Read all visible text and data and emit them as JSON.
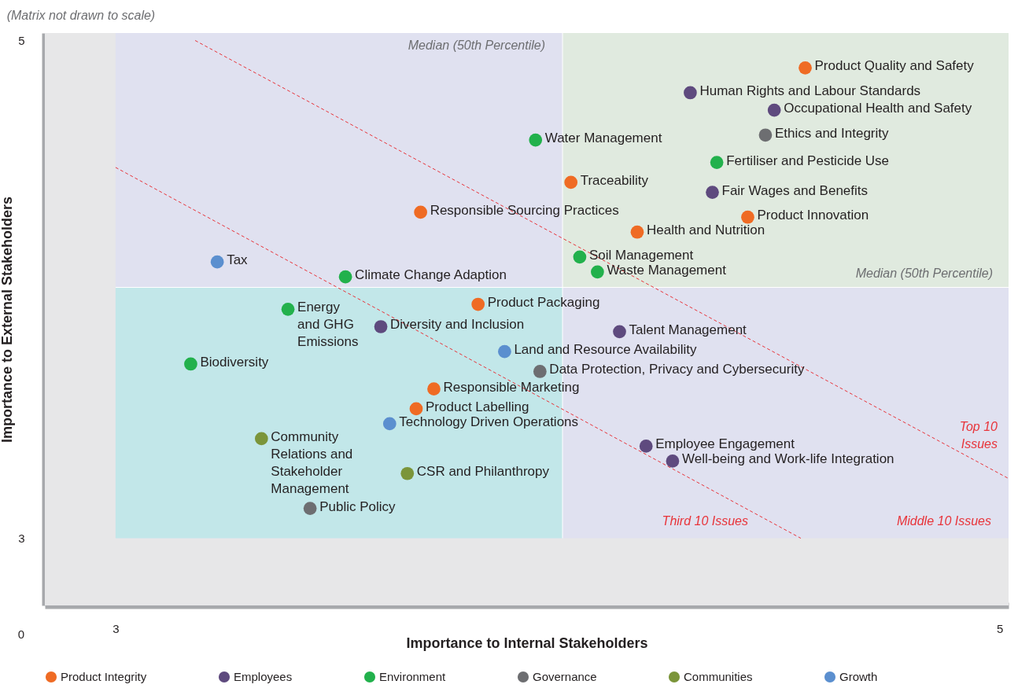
{
  "chart_data": {
    "type": "scatter",
    "xlabel": "Importance to Internal Stakeholders",
    "ylabel": "Importance to External Stakeholders",
    "xlim": [
      2.84,
      5.02
    ],
    "xticks": [
      3,
      5
    ],
    "ylim": [
      2.73,
      5.03
    ],
    "yticks": [
      3,
      5
    ],
    "legend": "bottom",
    "marker": "circle",
    "series": [
      {
        "name": "Product Integrity",
        "color": "#ef6b24",
        "x": [
          4.56,
          4.03,
          3.69,
          4.43,
          4.18,
          3.82,
          3.72,
          3.68
        ],
        "values": [
          4.89,
          4.43,
          4.31,
          4.29,
          4.23,
          3.94,
          3.6,
          3.52
        ]
      },
      {
        "name": "Employees",
        "color": "#5e4a7e",
        "x": [
          4.3,
          4.49,
          4.35,
          3.6,
          4.14,
          4.2,
          4.26
        ],
        "values": [
          4.79,
          4.72,
          4.39,
          3.85,
          3.83,
          3.37,
          3.31
        ]
      },
      {
        "name": "Environment",
        "color": "#22b14c",
        "x": [
          3.95,
          4.36,
          4.05,
          4.09,
          3.52,
          3.39,
          3.17
        ],
        "values": [
          4.6,
          4.51,
          4.13,
          4.07,
          4.05,
          3.92,
          3.7
        ]
      },
      {
        "name": "Governance",
        "color": "#6d6e71",
        "x": [
          4.47,
          3.96,
          3.44
        ],
        "values": [
          4.62,
          3.67,
          3.12
        ]
      },
      {
        "name": "Communities",
        "color": "#7b953a",
        "x": [
          3.33,
          3.66
        ],
        "values": [
          3.4,
          3.26
        ]
      },
      {
        "name": "Growth",
        "color": "#5b8fcf",
        "x": [
          3.23,
          3.88,
          3.62
        ],
        "values": [
          4.11,
          3.75,
          3.46
        ]
      },
      {
        "type": "line",
        "color": "#e8343a",
        "line_style": "dashed",
        "marker": "none",
        "x": [
          3.18,
          5.02
        ],
        "values": [
          5.0,
          3.24
        ]
      },
      {
        "type": "line",
        "color": "#e8343a",
        "line_style": "dashed",
        "marker": "none",
        "x": [
          3.0,
          4.55
        ],
        "values": [
          4.49,
          3.0
        ]
      }
    ],
    "bands": [
      {
        "axis": "x",
        "from": 2.84,
        "to": 3,
        "color": "#e7e7e8"
      },
      {
        "axis": "y",
        "from": 2.73,
        "to": 3,
        "color": "#e7e7e8"
      }
    ],
    "ref_lines": [
      {
        "axis": "x",
        "value": 4.011,
        "label": "Median (50th Percentile)"
      },
      {
        "axis": "y",
        "value": 4.008,
        "label": "Median (50th Percentile)"
      }
    ],
    "annotations": [
      "(Matrix not drawn to scale)",
      "0",
      {
        "text": "Product Quality and Safety",
        "x": 4.56,
        "y": 4.89
      },
      {
        "text": "Traceability",
        "x": 4.03,
        "y": 4.43
      },
      {
        "text": "Responsible Sourcing Practices",
        "x": 3.69,
        "y": 4.31
      },
      {
        "text": "Product Innovation",
        "x": 4.43,
        "y": 4.29
      },
      {
        "text": "Health and Nutrition",
        "x": 4.18,
        "y": 4.23
      },
      {
        "text": "Product Packaging",
        "x": 3.82,
        "y": 3.94
      },
      {
        "text": "Responsible Marketing",
        "x": 3.72,
        "y": 3.6
      },
      {
        "text": "Product Labelling",
        "x": 3.68,
        "y": 3.52
      },
      {
        "text": "Human Rights and Labour Standards",
        "x": 4.3,
        "y": 4.79
      },
      {
        "text": "Occupational Health and Safety",
        "x": 4.49,
        "y": 4.72
      },
      {
        "text": "Fair Wages and Benefits",
        "x": 4.35,
        "y": 4.39
      },
      {
        "text": "Diversity and Inclusion",
        "x": 3.6,
        "y": 3.85
      },
      {
        "text": "Talent Management",
        "x": 4.14,
        "y": 3.83
      },
      {
        "text": "Employee Engagement",
        "x": 4.2,
        "y": 3.37
      },
      {
        "text": "Well-being and Work-life Integration",
        "x": 4.26,
        "y": 3.31
      },
      {
        "text": "Water Management",
        "x": 3.95,
        "y": 4.6
      },
      {
        "text": "Fertiliser and Pesticide Use",
        "x": 4.36,
        "y": 4.51
      },
      {
        "text": "Soil Management",
        "x": 4.05,
        "y": 4.13
      },
      {
        "text": "Waste Management",
        "x": 4.09,
        "y": 4.07
      },
      {
        "text": "Climate Change Adaption",
        "x": 3.52,
        "y": 4.05
      },
      {
        "text": "Energy\nand GHG\nEmissions",
        "x": 3.39,
        "y": 3.92
      },
      {
        "text": "Biodiversity",
        "x": 3.17,
        "y": 3.7
      },
      {
        "text": "Ethics and Integrity",
        "x": 4.47,
        "y": 4.62
      },
      {
        "text": "Data Protection, Privacy and Cybersecurity",
        "x": 3.96,
        "y": 3.67
      },
      {
        "text": "Public Policy",
        "x": 3.44,
        "y": 3.12
      },
      {
        "text": "Community\nRelations and\nStakeholder\nManagement",
        "x": 3.33,
        "y": 3.4
      },
      {
        "text": "CSR and Philanthropy",
        "x": 3.66,
        "y": 3.26
      },
      {
        "text": "Tax",
        "x": 3.23,
        "y": 4.11
      },
      {
        "text": "Land and Resource Availability",
        "x": 3.88,
        "y": 3.75
      },
      {
        "text": "Technology Driven Operations",
        "x": 3.62,
        "y": 3.46
      },
      "Top 10\nIssues",
      "Middle 10 Issues",
      "Third 10 Issues"
    ]
  }
}
